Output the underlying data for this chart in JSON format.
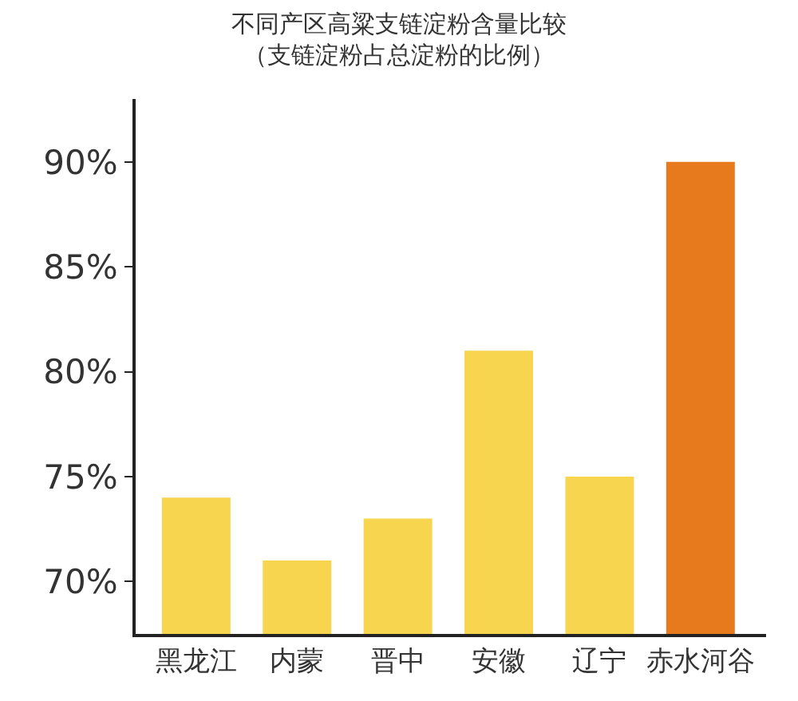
{
  "chart_data": {
    "type": "bar",
    "title": "不同产区高粱支链淀粉含量比较",
    "subtitle": "（支链淀粉占总淀粉的比例）",
    "categories": [
      "黑龙江",
      "内蒙",
      "晋中",
      "安徽",
      "辽宁",
      "赤水河谷"
    ],
    "values": [
      74,
      71,
      73,
      81,
      75,
      90
    ],
    "colors": [
      "#f7d54e",
      "#f7d54e",
      "#f7d54e",
      "#f7d54e",
      "#f7d54e",
      "#e67a1c"
    ],
    "ylim": [
      67.5,
      93
    ],
    "yticks": [
      {
        "value": 70,
        "label": "70%"
      },
      {
        "value": 75,
        "label": "75%"
      },
      {
        "value": 80,
        "label": "80%"
      },
      {
        "value": 85,
        "label": "85%"
      },
      {
        "value": 90,
        "label": "90%"
      }
    ],
    "legend": false
  }
}
